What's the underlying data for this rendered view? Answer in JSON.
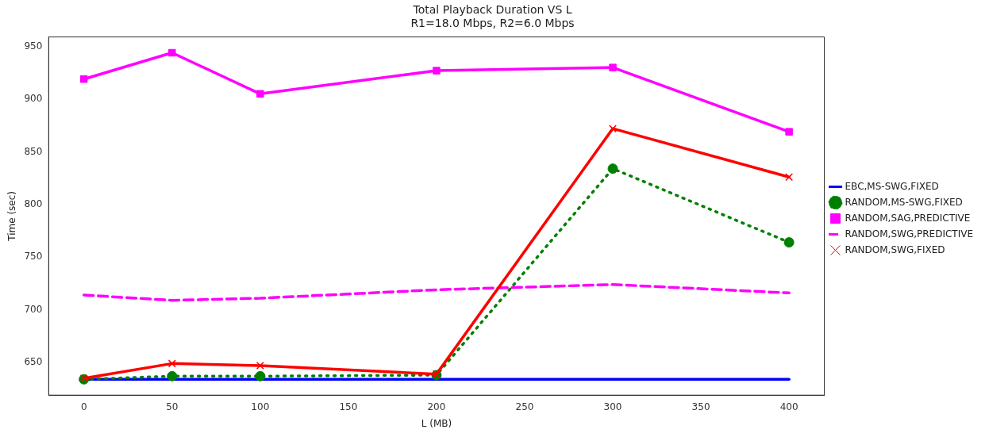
{
  "chart_data": {
    "type": "line",
    "title": "Total Playback Duration VS L",
    "subtitle": "R1=18.0 Mbps, R2=6.0 Mbps",
    "xlabel": "L (MB)",
    "ylabel": "Time (sec)",
    "x": [
      0,
      50,
      100,
      200,
      300,
      400
    ],
    "xlim": [
      -20,
      420
    ],
    "xticks": [
      0,
      50,
      100,
      150,
      200,
      250,
      300,
      350,
      400
    ],
    "ylim": [
      619,
      959
    ],
    "yticks": [
      650,
      700,
      750,
      800,
      850,
      900,
      950
    ],
    "grid": false,
    "legend": "right",
    "series": [
      {
        "name": "EBC,MS-SWG,FIXED",
        "color": "#0000ff",
        "values": [
          634,
          634,
          634,
          634,
          634,
          634
        ],
        "marker": "none",
        "line_style": "solid"
      },
      {
        "name": "RANDOM,MS-SWG,FIXED",
        "color": "#008000",
        "values": [
          634,
          637,
          637,
          638,
          834,
          764
        ],
        "marker": "circle",
        "line_style": "dotted"
      },
      {
        "name": "RANDOM,SAG,PREDICTIVE",
        "color": "#ff00ff",
        "values": [
          919,
          944,
          905,
          927,
          930,
          869
        ],
        "marker": "square",
        "line_style": "solid"
      },
      {
        "name": "RANDOM,SWG,PREDICTIVE",
        "color": "#ff00ff",
        "values": [
          714,
          709,
          711,
          719,
          724,
          716
        ],
        "marker": "none",
        "line_style": "dashed"
      },
      {
        "name": "RANDOM,SWG,FIXED",
        "color": "#ff0000",
        "values": [
          635,
          649,
          647,
          639,
          872,
          826
        ],
        "marker": "cross",
        "line_style": "solid"
      }
    ]
  }
}
